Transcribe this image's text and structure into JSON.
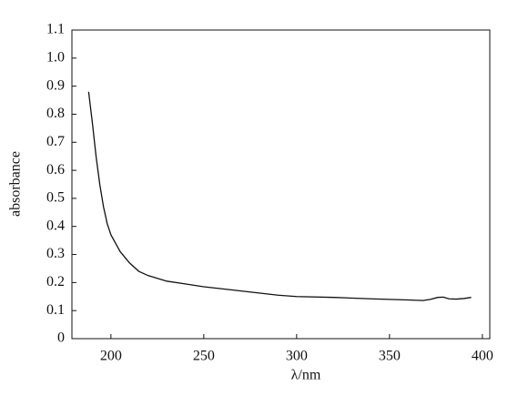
{
  "chart_data": {
    "type": "line",
    "xlabel": "λ/nm",
    "ylabel": "absorbance",
    "x": [
      188,
      190,
      192,
      194,
      196,
      198,
      200,
      205,
      210,
      215,
      220,
      230,
      240,
      250,
      270,
      290,
      300,
      320,
      340,
      360,
      368,
      372,
      376,
      379,
      382,
      386,
      390,
      394
    ],
    "series": [
      {
        "color": "#111111",
        "values": [
          0.88,
          0.77,
          0.65,
          0.55,
          0.47,
          0.41,
          0.37,
          0.31,
          0.27,
          0.24,
          0.225,
          0.205,
          0.195,
          0.185,
          0.17,
          0.155,
          0.15,
          0.147,
          0.142,
          0.138,
          0.136,
          0.14,
          0.147,
          0.148,
          0.142,
          0.141,
          0.143,
          0.147
        ]
      }
    ],
    "xlim": [
      179,
      404
    ],
    "xticks": [
      200,
      250,
      300,
      350,
      400
    ],
    "ylim": [
      0,
      1.1
    ],
    "yticks": [
      0,
      0.1,
      0.2,
      0.3,
      0.4,
      0.5,
      0.6,
      0.7,
      0.8,
      0.9,
      {
        "value": 1,
        "label": "1.0"
      },
      1.1
    ]
  }
}
